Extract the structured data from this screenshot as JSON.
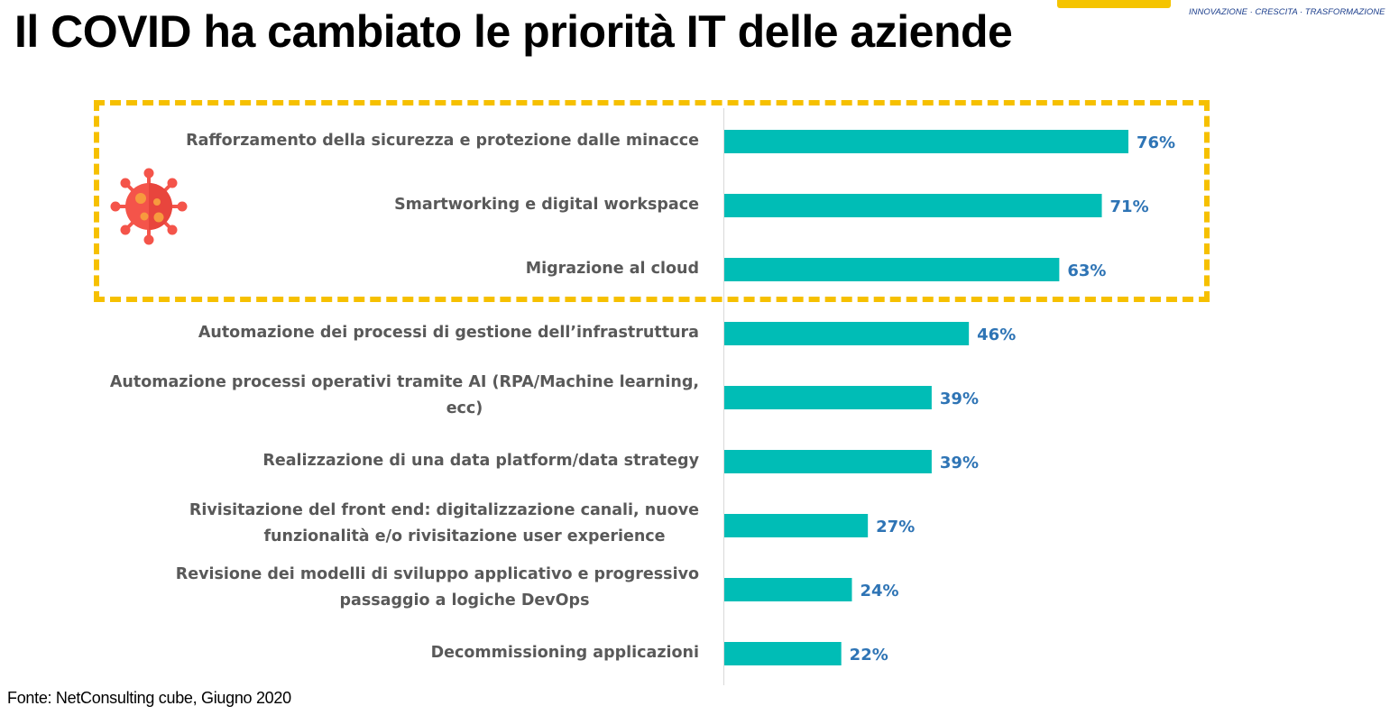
{
  "title": "Il COVID ha cambiato le priorità IT delle aziende",
  "logo": {
    "tagline": "INNOVAZIONE · CRESCITA · TRASFORMAZIONE"
  },
  "source": "Fonte: NetConsulting cube, Giugno  2020",
  "colors": {
    "bar": "#00bdb6",
    "value_label": "#2e74b5",
    "highlight_border": "#f6c000",
    "category_text": "#595959",
    "axis_line": "#d9d9d9",
    "virus": "#f4544a"
  },
  "icons": {
    "virus": "virus-icon"
  },
  "chart_data": {
    "type": "bar",
    "orientation": "horizontal",
    "categories": [
      [
        "Rafforzamento della sicurezza e protezione dalle minacce"
      ],
      [
        "Smartworking e digital workspace"
      ],
      [
        "Migrazione al cloud"
      ],
      [
        "Automazione dei processi di gestione dell’infrastruttura"
      ],
      [
        "Automazione processi operativi tramite AI (RPA/Machine learning,",
        "ecc)"
      ],
      [
        "Realizzazione di una data platform/data strategy"
      ],
      [
        "Rivisitazione del front end: digitalizzazione canali, nuove",
        "funzionalità e/o rivisitazione user experience"
      ],
      [
        "Revisione dei modelli di sviluppo applicativo e progressivo",
        "passaggio a logiche DevOps"
      ],
      [
        "Decommissioning applicazioni"
      ]
    ],
    "values": [
      76,
      71,
      63,
      46,
      39,
      39,
      27,
      24,
      22
    ],
    "value_labels": [
      "76%",
      "71%",
      "63%",
      "46%",
      "39%",
      "39%",
      "27%",
      "24%",
      "22%"
    ],
    "unit": "%",
    "xlim": [
      0,
      100
    ],
    "highlighted_categories": 3,
    "grid": false,
    "legend": "none"
  }
}
